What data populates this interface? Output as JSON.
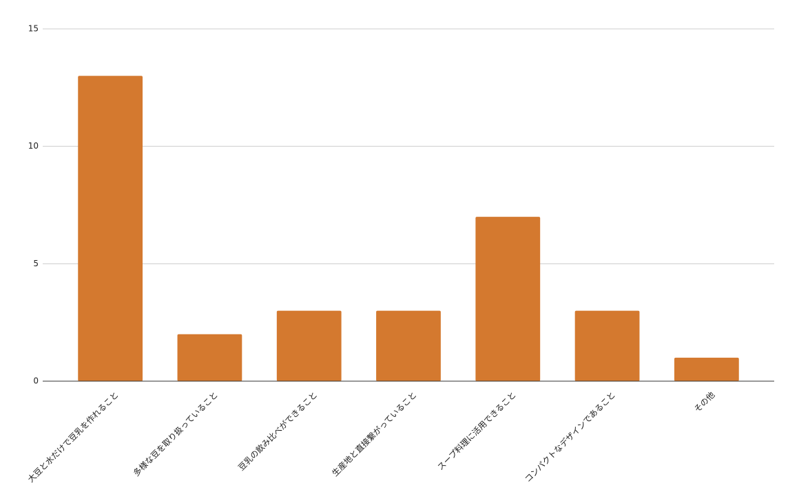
{
  "chart_data": {
    "type": "bar",
    "categories": [
      "大豆と水だけで豆乳を作れること",
      "多様な豆を取り扱っていること",
      "豆乳の飲み比べができること",
      "生産地と直接繋がっていること",
      "スープ料理に活用できること",
      "コンパクトなデザインであること",
      "その他"
    ],
    "values": [
      13,
      2,
      3,
      3,
      7,
      3,
      1
    ],
    "color": "#d4792f",
    "ylim": [
      0,
      15
    ],
    "yticks": [
      0,
      5,
      10,
      15
    ],
    "grid": true
  }
}
